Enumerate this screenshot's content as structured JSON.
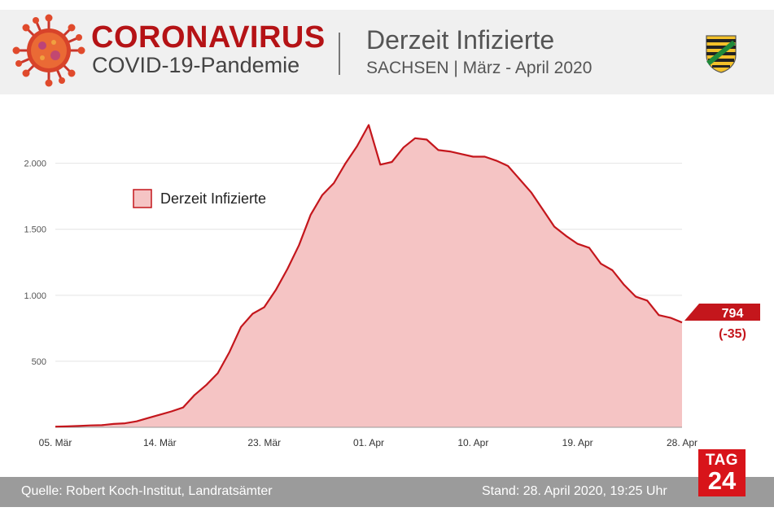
{
  "header": {
    "brand_title": "CORONAVIRUS",
    "brand_subtitle": "COVID-19-Pandemie",
    "title": "Derzeit Infizierte",
    "subtitle": "SACHSEN | März - April 2020"
  },
  "colors": {
    "brand_red": "#b51316",
    "line": "#c4161c",
    "area": "#f5c4c4",
    "footer_bg": "#9b9b9b"
  },
  "chart_data": {
    "type": "area",
    "title": "Derzeit Infizierte",
    "legend": "Derzeit Infizierte",
    "legend_position": "top-left",
    "xlabel": "",
    "ylabel": "",
    "ylim": [
      0,
      2300
    ],
    "grid": true,
    "y_ticks": [
      500,
      1000,
      1500,
      2000
    ],
    "y_tick_labels": [
      "500",
      "1.000",
      "1.500",
      "2.000"
    ],
    "x_tick_indices": [
      0,
      9,
      18,
      27,
      36,
      45,
      54
    ],
    "x_tick_labels": [
      "05. Mär",
      "14. Mär",
      "23. Mär",
      "01. Apr",
      "10. Apr",
      "19. Apr",
      "28. Apr"
    ],
    "x_start": "05. Mär",
    "series": [
      {
        "name": "Derzeit Infizierte",
        "values": [
          5,
          7,
          10,
          14,
          16,
          25,
          30,
          45,
          70,
          95,
          120,
          150,
          245,
          320,
          410,
          570,
          760,
          860,
          910,
          1040,
          1200,
          1380,
          1610,
          1760,
          1850,
          2000,
          2130,
          2290,
          1990,
          2010,
          2120,
          2190,
          2180,
          2100,
          2090,
          2070,
          2050,
          2050,
          2020,
          1980,
          1880,
          1780,
          1650,
          1520,
          1450,
          1390,
          1360,
          1240,
          1190,
          1080,
          990,
          960,
          850,
          830,
          794
        ]
      }
    ],
    "annotation": {
      "value_label": "794",
      "delta_label": "(-35)"
    }
  },
  "footer": {
    "source": "Quelle: Robert Koch-Institut, Landratsämter",
    "stand": "Stand: 28. April 2020, 19:25 Uhr"
  },
  "logo": {
    "line1": "TAG",
    "line2": "24"
  }
}
